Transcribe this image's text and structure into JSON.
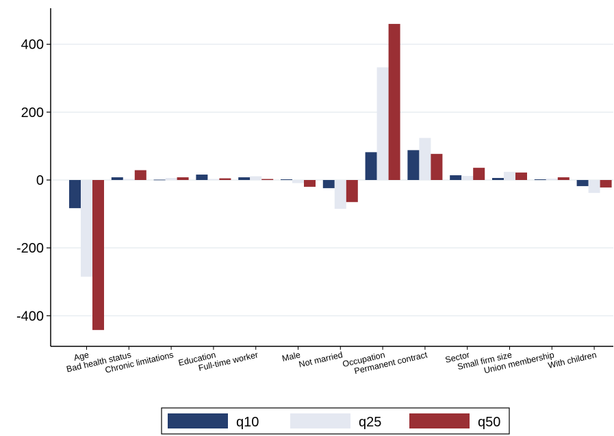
{
  "chart_data": {
    "type": "bar",
    "categories": [
      "Age",
      "Bad health status",
      "Chronic limitations",
      "Education",
      "Full-time worker",
      "Male",
      "Not married",
      "Occupation",
      "Permanent contract",
      "Sector",
      "Small firm size",
      "Union membership",
      "With children"
    ],
    "series": [
      {
        "name": "q10",
        "color": "#253e6e",
        "values": [
          -83,
          8,
          1,
          16,
          8,
          2,
          -24,
          82,
          88,
          14,
          6,
          2,
          -18
        ]
      },
      {
        "name": "q25",
        "color": "#e4e8f1",
        "values": [
          -285,
          3,
          6,
          3,
          11,
          -9,
          -85,
          332,
          124,
          12,
          24,
          4,
          -38
        ]
      },
      {
        "name": "q50",
        "color": "#9a2f34",
        "values": [
          -442,
          29,
          8,
          5,
          3,
          -20,
          -65,
          460,
          77,
          36,
          22,
          8,
          -22
        ]
      }
    ],
    "ylim": [
      -445,
      505
    ],
    "yticks": [
      400,
      200,
      0,
      -200,
      -400
    ],
    "ytick_labels": [
      "400",
      "200",
      "0",
      "-200",
      "-400"
    ],
    "title": "",
    "xlabel": "",
    "ylabel": "",
    "grid": true,
    "legend_position": "bottom"
  }
}
